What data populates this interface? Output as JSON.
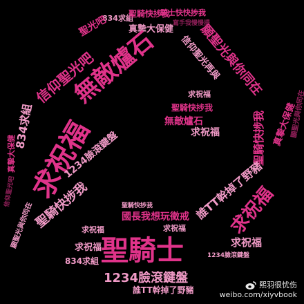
{
  "colors": {
    "background": "#000000",
    "primary": "#e0338a",
    "light": "#f09ac6",
    "dark": "#8f1f58",
    "white": "#ffffff"
  },
  "words": {
    "top_834": "834求組",
    "top_qidao": "聖騎快捗我",
    "top_jijiu": "騎士快快捗我",
    "top_xieshi": "寫手我慢慢提",
    "shengguang": "聖光吧",
    "zhenxin": "真摯大保健",
    "wudi_big": "無敵爐石",
    "xinyang": "信仰聖光吧",
    "shengguang_r": "願聖光與你同在",
    "xingyang_r": "信仰聖光再與",
    "qiukuangfu_l": "求祝福",
    "shengqi_l": "聖騎快捗我",
    "shengqi_c": "聖騎快捗我",
    "wudi_c": "無敵爐石",
    "qiuzhufu_c": "求祝福",
    "qiuzhufu_small": "求祝福",
    "shengqi_r": "聖騎快捗我",
    "zhenxin_r": "真摯大保健",
    "qiuzhufu_big": "求祝福",
    "num_1234": "1234臉滾鍵盤",
    "shengqi_left2": "聖騎快捗我",
    "jian_r": "誰TT幹掉了野豬",
    "qiuzhufu_r": "求祝福",
    "guozhang": "國長我想玩徵戒",
    "shengqishi": "聖騎士",
    "qiuzhufu_bl": "求祝福",
    "qiuzhufu_br": "求祝福",
    "num_1234_b": "1234臉滾鍵盤",
    "num_1234_s": "1234臉滾鍵盤",
    "jian_b": "誰TT幹掉了野豬",
    "zu_834_bl": "834求組",
    "vert_834": "834求組",
    "qiu_l2": "求祝福",
    "zhen_l": "真摯大保健",
    "jiushi": "願聖光與你同在",
    "yuanguang_l": "願聖光與你同在",
    "xinyang_l": "信仰聖光吧"
  },
  "watermark": {
    "account": "熙羽很忧伤",
    "url": "weibo.com/xiyvbook"
  }
}
